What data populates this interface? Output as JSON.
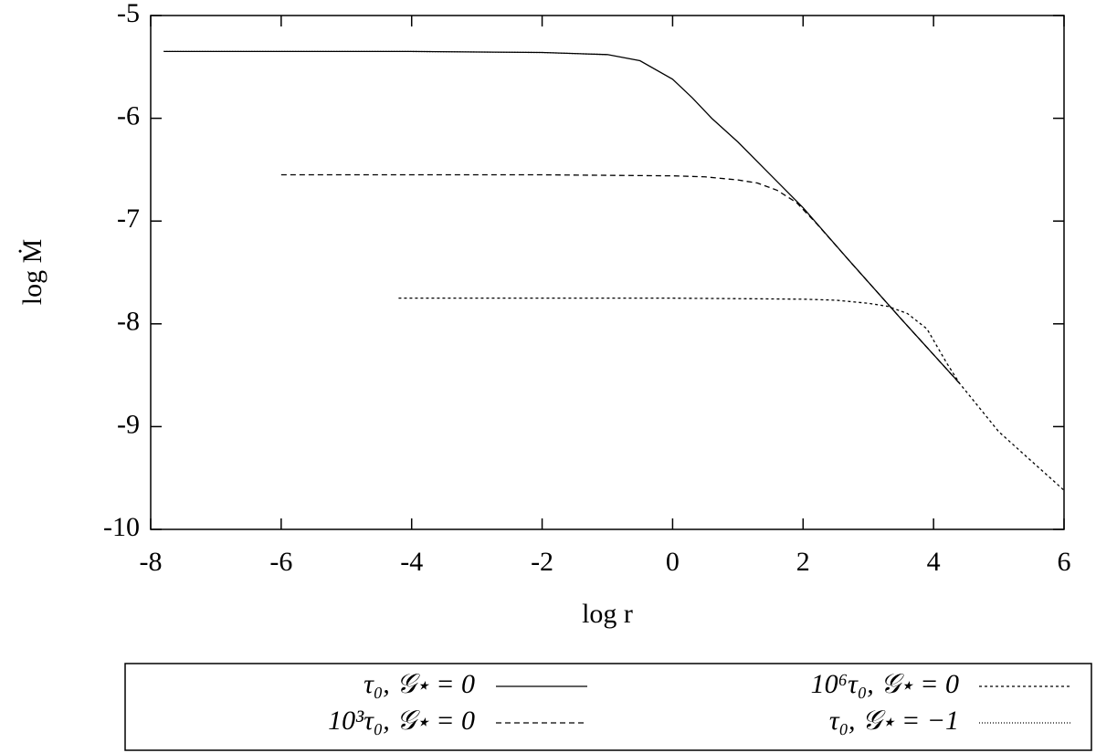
{
  "chart_data": {
    "type": "line",
    "x_label": "log r",
    "y_label": "log Ṁ",
    "xlim": [
      -8,
      6
    ],
    "ylim": [
      -10,
      -5
    ],
    "xticks": [
      -8,
      -6,
      -4,
      -2,
      0,
      2,
      4,
      6
    ],
    "yticks": [
      -5,
      -6,
      -7,
      -8,
      -9,
      -10
    ],
    "series": [
      {
        "name": "τ₀, 𝒢⋆ = 0",
        "color": "#000000",
        "dash": "none",
        "x": [
          -7.8,
          -4,
          -2,
          -1,
          -0.5,
          0,
          0.3,
          0.6,
          1,
          1.5,
          2,
          2.7,
          3.5,
          4.4
        ],
        "values": [
          -5.35,
          -5.35,
          -5.36,
          -5.38,
          -5.44,
          -5.62,
          -5.8,
          -6.0,
          -6.23,
          -6.55,
          -6.87,
          -7.38,
          -7.95,
          -8.58
        ]
      },
      {
        "name": "10³τ₀, 𝒢⋆ = 0",
        "color": "#000000",
        "dash": "6,4",
        "x": [
          -6,
          -2,
          0,
          0.5,
          1,
          1.3,
          1.6,
          1.9,
          2.2,
          2.7,
          3.5,
          4.4
        ],
        "values": [
          -6.55,
          -6.55,
          -6.56,
          -6.57,
          -6.6,
          -6.63,
          -6.7,
          -6.82,
          -7.02,
          -7.38,
          -7.95,
          -8.58
        ]
      },
      {
        "name": "10⁶τ₀, 𝒢⋆ = 0",
        "color": "#000000",
        "dash": "3,3",
        "x": [
          -4.2,
          0,
          2,
          2.5,
          3,
          3.3,
          3.6,
          3.9,
          4.2,
          4.4,
          5,
          6
        ],
        "values": [
          -7.75,
          -7.75,
          -7.76,
          -7.77,
          -7.8,
          -7.83,
          -7.9,
          -8.05,
          -8.38,
          -8.58,
          -9.05,
          -9.62
        ]
      },
      {
        "name": "τ₀, 𝒢⋆ = −1",
        "color": "#000000",
        "dash": "1,2",
        "x": [
          -7.8,
          -4,
          -2,
          -1
        ],
        "values": [
          -5.35,
          -5.35,
          -5.36,
          -5.38
        ]
      }
    ]
  }
}
